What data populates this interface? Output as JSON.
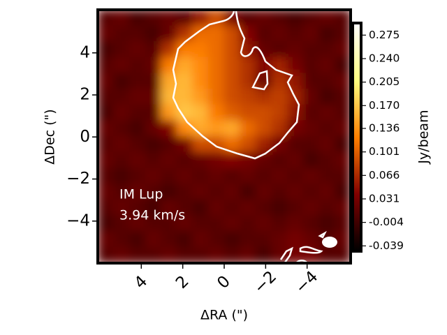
{
  "chart_data": {
    "type": "image",
    "xlabel": "ΔRA (\")",
    "ylabel": "ΔDec (\")",
    "colorbar_label": "Jy/beam",
    "annotations": [
      "IM Lup",
      "3.94 km/s"
    ],
    "colormap": "afmhot",
    "xlim": [
      6.1,
      -6.1
    ],
    "ylim": [
      -6,
      6.05
    ],
    "xticks": [
      4,
      2,
      0,
      {
        "value": -2,
        "label": "−2"
      },
      {
        "value": -4,
        "label": "−4"
      }
    ],
    "yticks": [
      4,
      2,
      0,
      {
        "value": -2,
        "label": "−2"
      },
      {
        "value": -4,
        "label": "−4"
      }
    ],
    "clim": [
      -0.047,
      0.293
    ],
    "cticks": [
      0.275,
      {
        "value": 0.24,
        "label": "0.240"
      },
      0.205,
      {
        "value": 0.17,
        "label": "0.170"
      },
      0.136,
      0.101,
      0.066,
      0.031,
      -0.004,
      -0.039
    ],
    "z": [
      [
        0.01,
        0.02,
        0.0,
        0.01,
        0.02,
        0.01,
        0.05,
        0.09,
        0.03,
        0.01,
        0.02,
        0.01,
        0.0,
        0.01,
        0.02,
        0.01
      ],
      [
        0.02,
        0.01,
        0.01,
        0.0,
        0.02,
        0.07,
        0.11,
        0.11,
        0.09,
        0.04,
        0.01,
        0.02,
        0.01,
        0.02,
        0.0,
        0.01
      ],
      [
        0.0,
        0.01,
        0.02,
        0.01,
        0.07,
        0.12,
        0.12,
        0.11,
        0.09,
        0.05,
        0.02,
        0.01,
        0.02,
        0.01,
        0.01,
        0.02
      ],
      [
        0.01,
        0.02,
        0.01,
        0.02,
        0.12,
        0.15,
        0.13,
        0.11,
        0.09,
        0.07,
        0.04,
        0.06,
        0.03,
        0.01,
        0.02,
        0.0
      ],
      [
        0.02,
        0.0,
        0.01,
        0.01,
        0.15,
        0.16,
        0.13,
        0.11,
        0.09,
        0.07,
        0.02,
        0.07,
        0.05,
        0.01,
        0.01,
        0.02
      ],
      [
        0.01,
        0.01,
        0.02,
        0.02,
        0.16,
        0.16,
        0.14,
        0.11,
        0.09,
        0.08,
        0.07,
        0.08,
        0.06,
        0.02,
        0.0,
        0.01
      ],
      [
        0.0,
        0.02,
        0.01,
        0.01,
        0.14,
        0.17,
        0.16,
        0.12,
        0.1,
        0.09,
        0.09,
        0.08,
        0.05,
        0.01,
        0.02,
        0.01
      ],
      [
        0.02,
        0.01,
        0.0,
        0.02,
        0.04,
        0.13,
        0.15,
        0.14,
        0.15,
        0.11,
        0.09,
        0.07,
        0.03,
        0.02,
        0.01,
        0.02
      ],
      [
        0.01,
        0.02,
        0.01,
        0.0,
        0.01,
        0.03,
        0.09,
        0.09,
        0.11,
        0.09,
        0.06,
        0.03,
        0.01,
        0.01,
        0.02,
        0.0
      ],
      [
        0.02,
        0.01,
        0.02,
        0.01,
        0.02,
        0.01,
        0.02,
        0.03,
        0.04,
        0.03,
        0.02,
        0.01,
        0.02,
        0.0,
        0.01,
        0.02
      ],
      [
        0.01,
        0.0,
        0.01,
        0.02,
        0.01,
        0.02,
        0.01,
        0.02,
        0.01,
        0.02,
        0.01,
        0.02,
        0.01,
        0.02,
        0.01,
        0.01
      ],
      [
        0.02,
        0.01,
        0.02,
        0.01,
        0.0,
        0.01,
        0.02,
        0.01,
        0.02,
        0.0,
        0.02,
        0.01,
        0.02,
        0.01,
        0.02,
        0.0
      ],
      [
        0.01,
        0.02,
        0.01,
        0.0,
        0.02,
        0.01,
        0.0,
        0.02,
        0.01,
        0.02,
        0.01,
        0.0,
        0.01,
        0.02,
        0.01,
        0.02
      ],
      [
        0.0,
        0.01,
        0.02,
        0.01,
        0.01,
        0.02,
        0.01,
        0.01,
        0.02,
        0.01,
        0.02,
        0.01,
        0.02,
        0.01,
        0.0,
        0.01
      ],
      [
        0.02,
        0.01,
        0.0,
        0.02,
        0.01,
        0.0,
        0.02,
        0.01,
        0.0,
        0.01,
        0.01,
        0.02,
        0.03,
        0.02,
        0.01,
        0.02
      ],
      [
        0.01,
        0.02,
        0.01,
        0.01,
        0.02,
        0.01,
        0.01,
        0.02,
        0.01,
        0.02,
        0.0,
        0.02,
        0.03,
        0.03,
        0.01,
        0.01
      ]
    ]
  }
}
